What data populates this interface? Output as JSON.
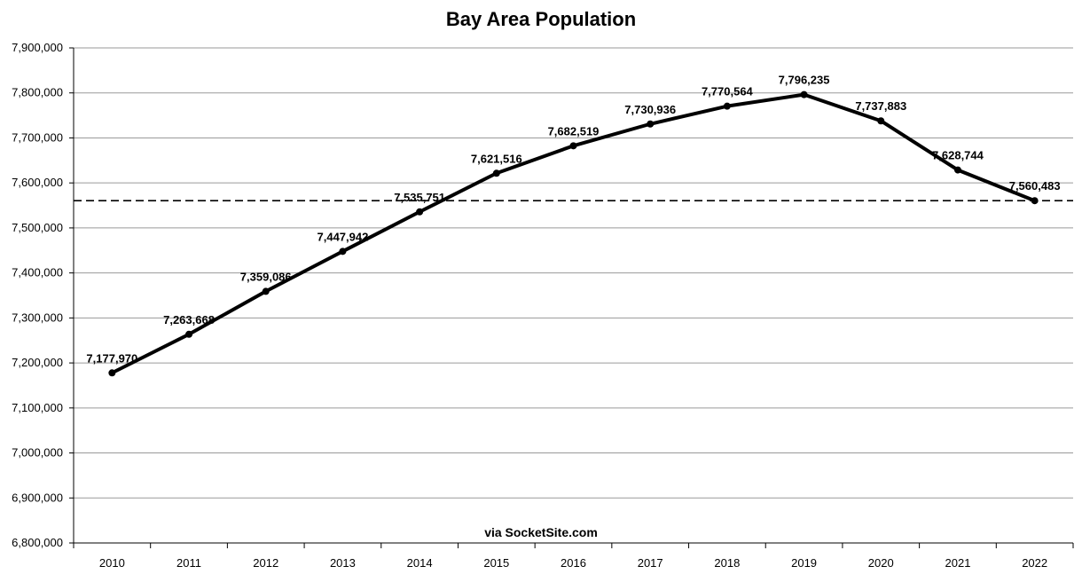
{
  "chart_data": {
    "type": "line",
    "title": "Bay Area Population",
    "xlabel": "",
    "ylabel": "",
    "x": [
      "2010",
      "2011",
      "2012",
      "2013",
      "2014",
      "2015",
      "2016",
      "2017",
      "2018",
      "2019",
      "2020",
      "2021",
      "2022"
    ],
    "series": [
      {
        "values": [
          7177970,
          7263668,
          7359086,
          7447942,
          7535751,
          7621516,
          7682519,
          7730936,
          7770564,
          7796235,
          7737883,
          7628744,
          7560483
        ],
        "labels": [
          "7,177,970",
          "7,263,668",
          "7,359,086",
          "7,447,942",
          "7,535,751",
          "7,621,516",
          "7,682,519",
          "7,730,936",
          "7,770,564",
          "7,796,235",
          "7,737,883",
          "7,628,744",
          "7,560,483"
        ],
        "color": "#000000"
      }
    ],
    "reference_line": {
      "value": 7560483,
      "style": "dashed",
      "color": "#000000"
    },
    "ylim": [
      6800000,
      7900000
    ],
    "yticks": [
      6800000,
      6900000,
      7000000,
      7100000,
      7200000,
      7300000,
      7400000,
      7500000,
      7600000,
      7700000,
      7800000,
      7900000
    ],
    "ytick_labels": [
      "6,800,000",
      "6,900,000",
      "7,000,000",
      "7,100,000",
      "7,200,000",
      "7,300,000",
      "7,400,000",
      "7,500,000",
      "7,600,000",
      "7,700,000",
      "7,800,000",
      "7,900,000"
    ],
    "grid": true,
    "legend": "none"
  },
  "credit": "via SocketSite.com"
}
